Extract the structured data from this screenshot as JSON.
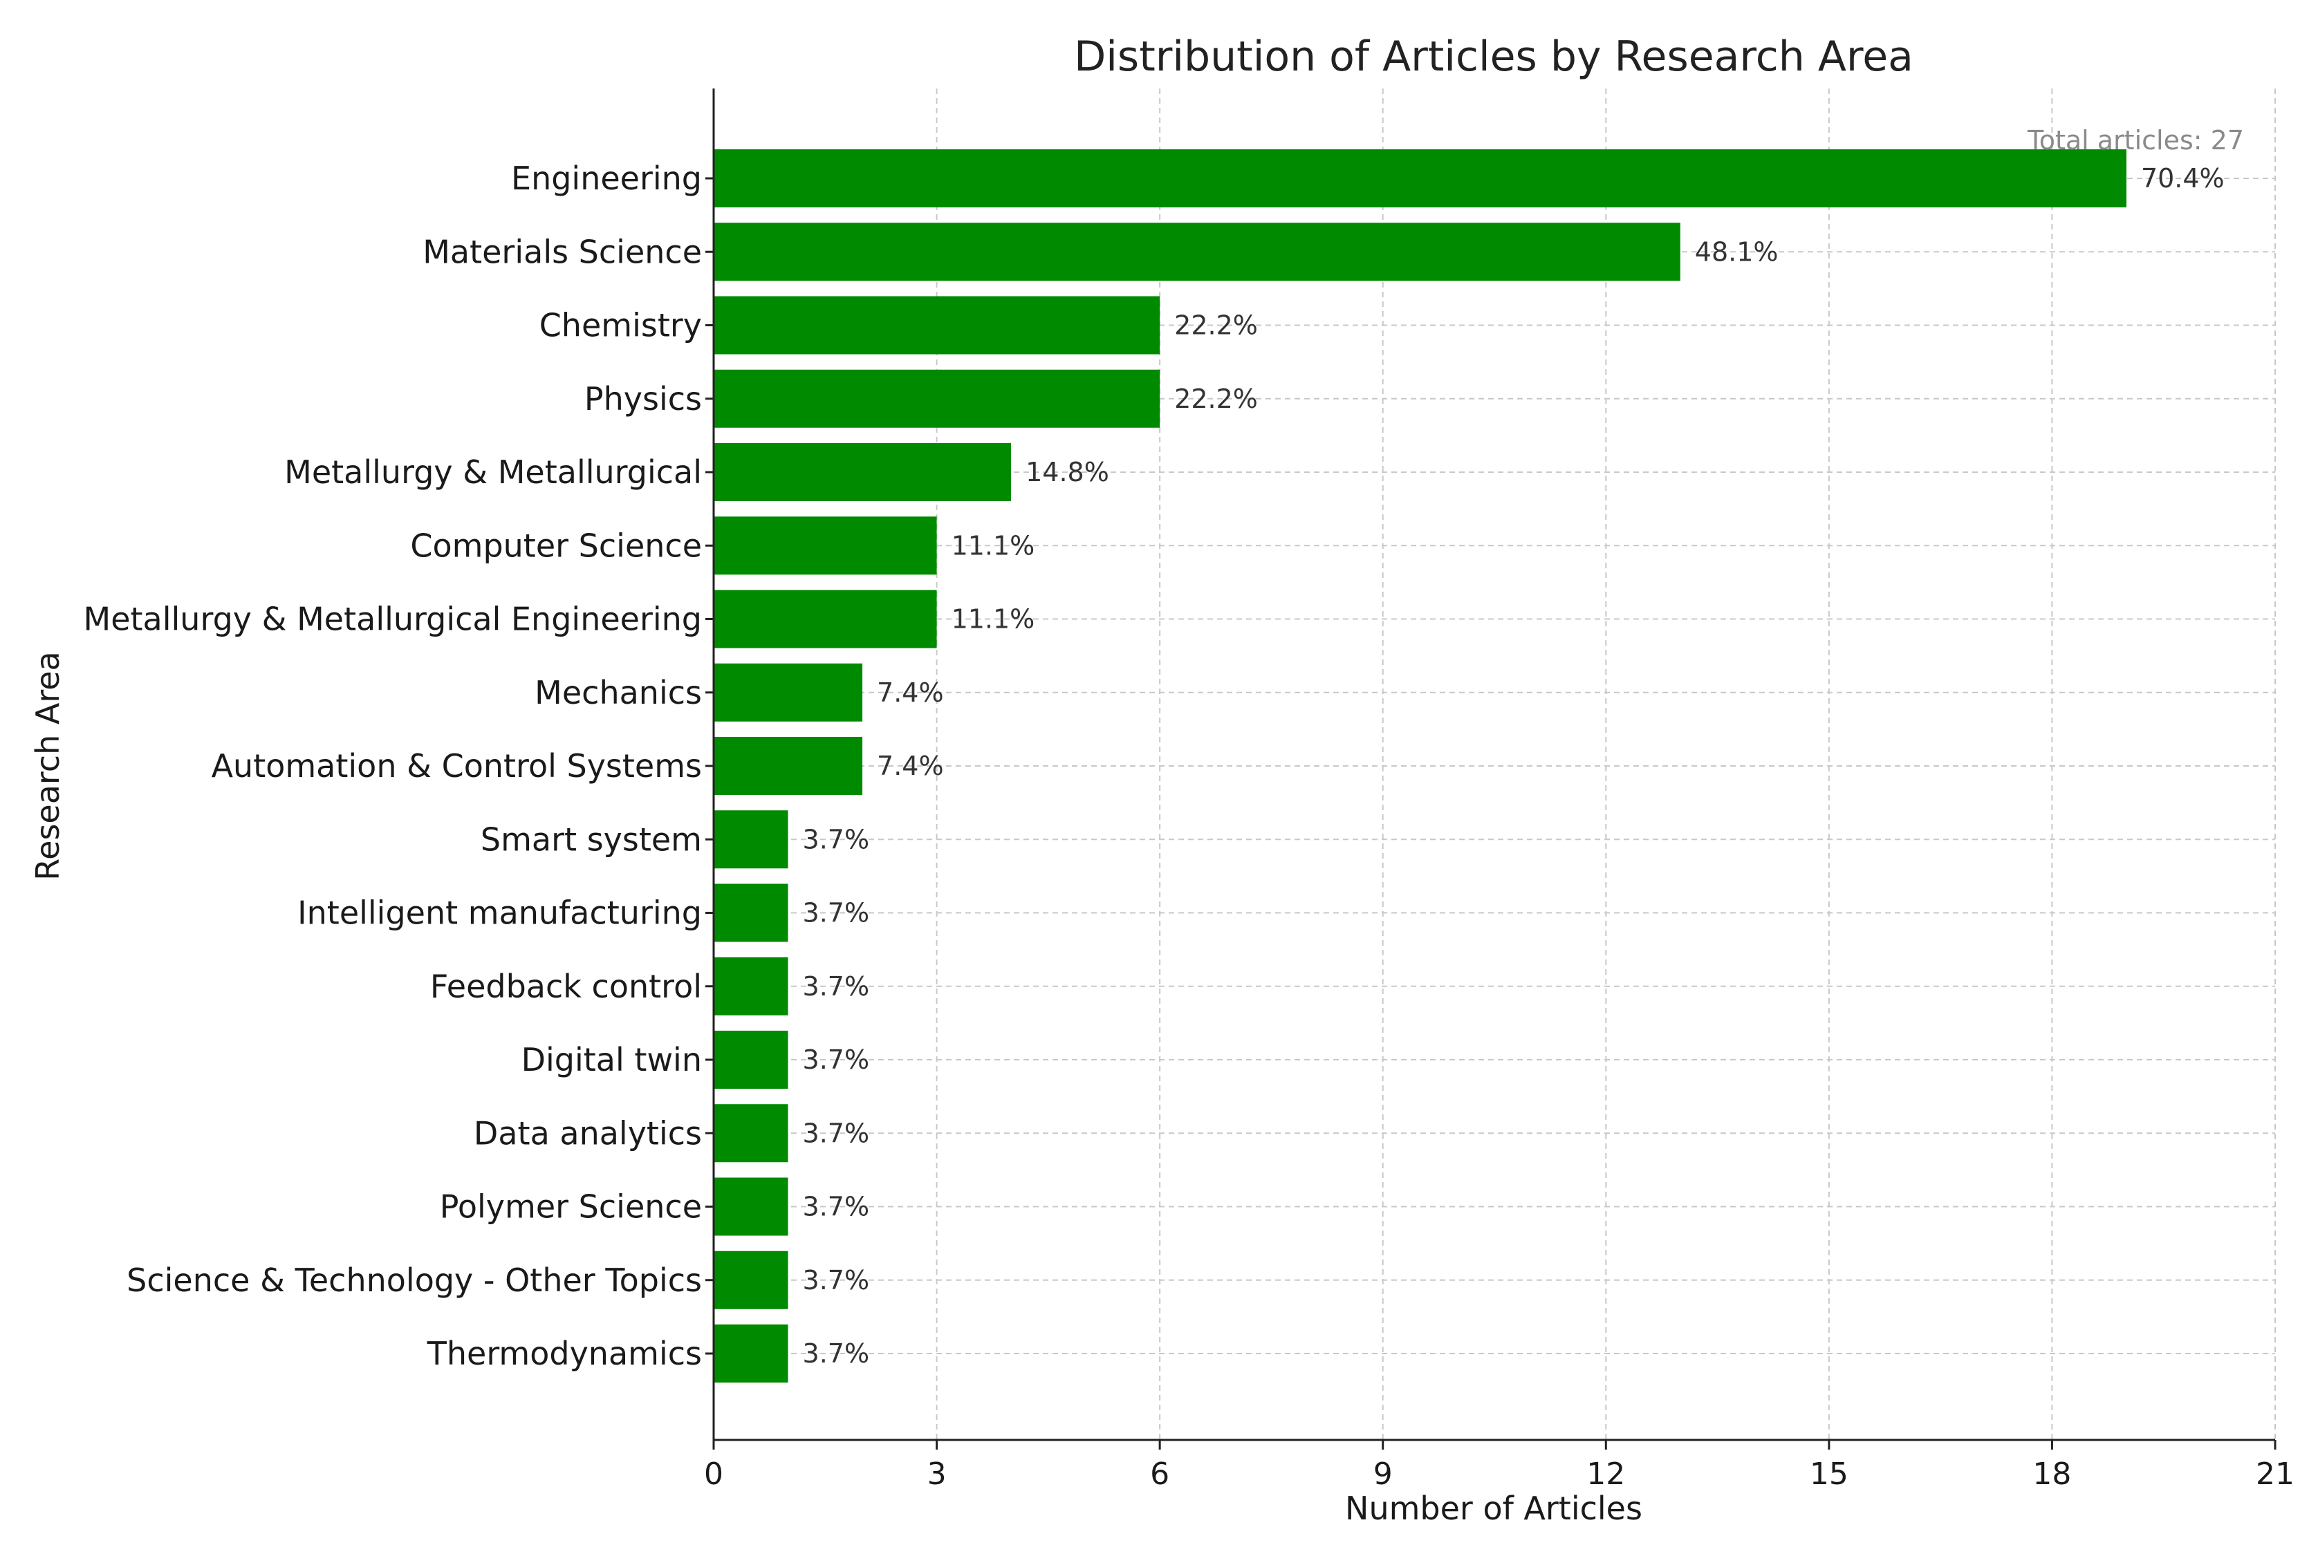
{
  "chart_data": {
    "type": "bar",
    "orientation": "horizontal",
    "title": "Distribution of Articles by Research Area",
    "xlabel": "Number of Articles",
    "ylabel": "Research Area",
    "xlim": [
      0,
      21
    ],
    "xticks": [
      0,
      3,
      6,
      9,
      12,
      15,
      18,
      21
    ],
    "grid": true,
    "bar_color": "#008a00",
    "annotation": "Total articles: 27",
    "categories": [
      "Engineering",
      "Materials Science",
      "Chemistry",
      "Physics",
      "Metallurgy & Metallurgical",
      "Computer Science",
      "Metallurgy & Metallurgical Engineering",
      "Mechanics",
      "Automation & Control Systems",
      "Smart system",
      "Intelligent manufacturing",
      "Feedback control",
      "Digital twin",
      "Data analytics",
      "Polymer Science",
      "Science & Technology - Other Topics",
      "Thermodynamics"
    ],
    "values": [
      19,
      13,
      6,
      6,
      4,
      3,
      3,
      2,
      2,
      1,
      1,
      1,
      1,
      1,
      1,
      1,
      1
    ],
    "labels": [
      "70.4%",
      "48.1%",
      "22.2%",
      "22.2%",
      "14.8%",
      "11.1%",
      "11.1%",
      "7.4%",
      "7.4%",
      "3.7%",
      "3.7%",
      "3.7%",
      "3.7%",
      "3.7%",
      "3.7%",
      "3.7%",
      "3.7%"
    ]
  }
}
